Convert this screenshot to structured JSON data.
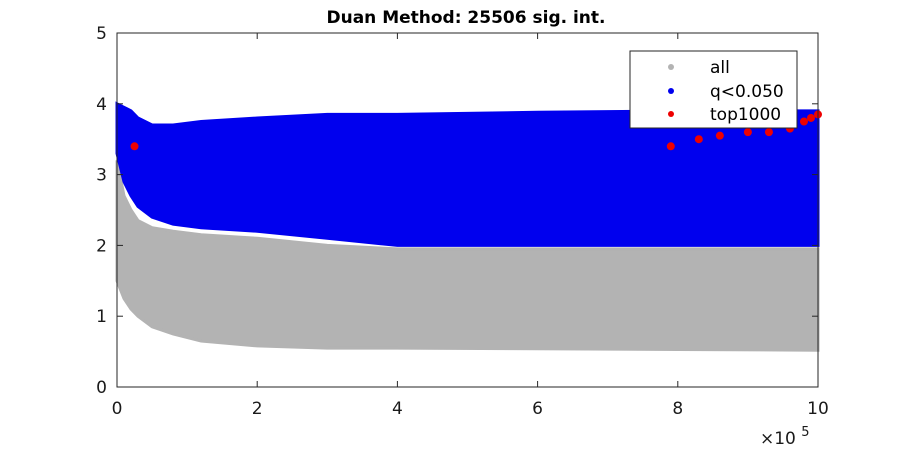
{
  "chart_data": {
    "type": "scatter",
    "title": "Duan Method: 25506 sig. int.",
    "xlabel": "",
    "ylabel": "",
    "xlim": [
      0,
      1000000
    ],
    "ylim": [
      0,
      5
    ],
    "x_ticks": [
      0,
      200000,
      400000,
      600000,
      800000,
      1000000
    ],
    "x_tick_labels": [
      "0",
      "2",
      "4",
      "6",
      "8",
      "10"
    ],
    "x_exponent_label": "×10",
    "x_exponent_power": "5",
    "y_ticks": [
      0,
      1,
      2,
      3,
      4,
      5
    ],
    "y_tick_labels": [
      "0",
      "1",
      "2",
      "3",
      "4",
      "5"
    ],
    "grid": false,
    "legend_position": "top-right",
    "series": [
      {
        "name": "all",
        "color": "#b3b3b3",
        "shape": "band",
        "x": [
          0,
          10000,
          20000,
          30000,
          50000,
          80000,
          120000,
          200000,
          300000,
          400000,
          600000,
          800000,
          1000000
        ],
        "y_low": [
          1.5,
          1.25,
          1.1,
          1.0,
          0.85,
          0.75,
          0.65,
          0.58,
          0.55,
          0.55,
          0.54,
          0.53,
          0.52
        ],
        "y_high": [
          3.2,
          2.7,
          2.5,
          2.35,
          2.25,
          2.2,
          2.15,
          2.1,
          2.0,
          1.95,
          1.95,
          1.95,
          1.95
        ]
      },
      {
        "name": "q<0.050",
        "color": "#0000ee",
        "shape": "band",
        "x": [
          0,
          10000,
          20000,
          30000,
          50000,
          80000,
          120000,
          200000,
          300000,
          400000,
          600000,
          800000,
          1000000
        ],
        "y_low": [
          3.3,
          2.9,
          2.7,
          2.55,
          2.4,
          2.3,
          2.25,
          2.2,
          2.1,
          2.0,
          2.0,
          2.0,
          2.0
        ],
        "y_high": [
          4.0,
          3.95,
          3.9,
          3.8,
          3.7,
          3.7,
          3.75,
          3.8,
          3.85,
          3.85,
          3.88,
          3.9,
          3.9
        ]
      },
      {
        "name": "top1000",
        "color": "#ee0000",
        "shape": "points",
        "x": [
          25000,
          790000,
          830000,
          860000,
          900000,
          930000,
          960000,
          980000,
          990000,
          1000000
        ],
        "y": [
          3.4,
          3.4,
          3.5,
          3.55,
          3.6,
          3.6,
          3.65,
          3.75,
          3.8,
          3.85
        ]
      }
    ]
  }
}
